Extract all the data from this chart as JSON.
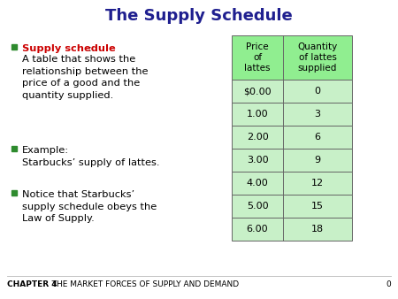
{
  "title": "The Supply Schedule",
  "title_color": "#1F1F8F",
  "title_fontsize": 13,
  "bg_color": "#FFFFFF",
  "bullet_square_color": "#2E8B2E",
  "text_color": "#000000",
  "highlight_color": "#CC0000",
  "table_header": [
    "Price\nof\nlattes",
    "Quantity\nof lattes\nsupplied"
  ],
  "table_prices": [
    "$0.00",
    "1.00",
    "2.00",
    "3.00",
    "4.00",
    "5.00",
    "6.00"
  ],
  "table_quantities": [
    "0",
    "3",
    "6",
    "9",
    "12",
    "15",
    "18"
  ],
  "table_header_bg": "#90EE90",
  "table_row_bg": "#C8F0C8",
  "table_border_color": "#666666",
  "footer_bold": "CHAPTER 4",
  "footer_rest": "   THE MARKET FORCES OF SUPPLY AND DEMAND",
  "footer_number": "0",
  "footer_color": "#333333",
  "footer_bold_color": "#000000",
  "footer_fontsize": 6.5
}
